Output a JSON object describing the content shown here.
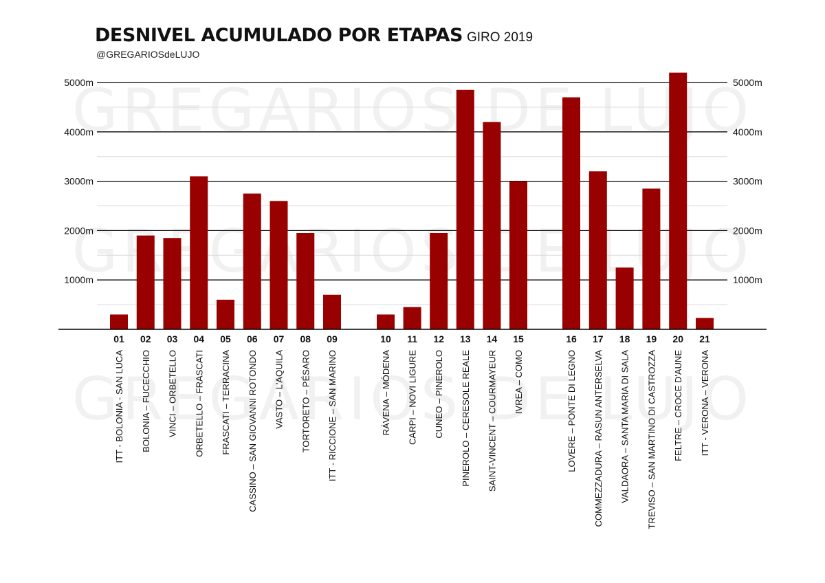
{
  "chart_data": {
    "type": "bar",
    "title": "DESNIVEL ACUMULADO POR ETAPAS",
    "subtitle": "GIRO 2019",
    "source": "@GREGARIOSdeLUJO",
    "watermark": "GREGARIOS DE LUJO",
    "ylim": [
      0,
      5200
    ],
    "yticks": [
      1000,
      2000,
      3000,
      4000,
      5000
    ],
    "ytick_labels": [
      "1000m",
      "2000m",
      "3000m",
      "4000m",
      "5000m"
    ],
    "bar_color": "#990000",
    "stages": [
      {
        "num": "01",
        "route": "ITT - BOLONIA - SAN LUCA",
        "value": 300
      },
      {
        "num": "02",
        "route": "BOLONIA – FUCECCHIO",
        "value": 1900
      },
      {
        "num": "03",
        "route": "VINCI – ORBETELLO",
        "value": 1850
      },
      {
        "num": "04",
        "route": "ORBETELLO – FRASCATI",
        "value": 3100
      },
      {
        "num": "05",
        "route": "FRASCATI – TERRACINA",
        "value": 600
      },
      {
        "num": "06",
        "route": "CASSINO – SAN GIOVANNI ROTONDO",
        "value": 2750
      },
      {
        "num": "07",
        "route": "VASTO – L'AQUILA",
        "value": 2600
      },
      {
        "num": "08",
        "route": "TORTORETO – PÉSARO",
        "value": 1950
      },
      {
        "num": "09",
        "route": "ITT - RICCIONE – SAN MARINO",
        "value": 700
      },
      {
        "num": "10",
        "route": "RÁVENA – MÓDENA",
        "value": 300
      },
      {
        "num": "11",
        "route": "CARPI – NOVI LIGURE",
        "value": 450
      },
      {
        "num": "12",
        "route": "CUNEO – PINEROLO",
        "value": 1950
      },
      {
        "num": "13",
        "route": "PINEROLO – CERESOLE REALE",
        "value": 4850
      },
      {
        "num": "14",
        "route": "SAINT-VINCENT – COURMAYEUR",
        "value": 4200
      },
      {
        "num": "15",
        "route": "IVREA – COMO",
        "value": 3000
      },
      {
        "num": "16",
        "route": "LOVERE – PONTE DI LEGNO",
        "value": 4700
      },
      {
        "num": "17",
        "route": "COMMEZZADURA – RASUN ANTERSELVA",
        "value": 3200
      },
      {
        "num": "18",
        "route": "VALDAORA – SANTA MARIA DI SALA",
        "value": 1250
      },
      {
        "num": "19",
        "route": "TREVISO – SAN MARTINO DI CASTROZZA",
        "value": 2850
      },
      {
        "num": "20",
        "route": "FELTRE – CROCE D'AUNE",
        "value": 5200
      },
      {
        "num": "21",
        "route": "ITT - VERONA – VERONA",
        "value": 230
      }
    ]
  }
}
